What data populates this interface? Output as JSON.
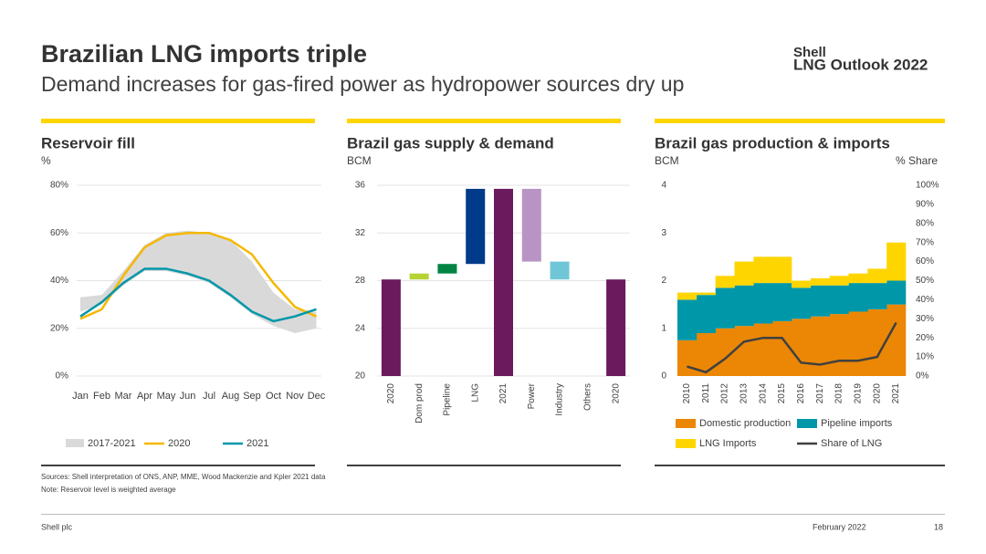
{
  "header": {
    "title": "Brazilian LNG imports triple",
    "subtitle": "Demand increases for gas-fired power as hydropower sources dry up",
    "brand": "Shell",
    "report": "LNG Outlook 2022"
  },
  "chart_data": [
    {
      "type": "line",
      "title": "Reservoir fill",
      "y_label": "%",
      "categories": [
        "Jan",
        "Feb",
        "Mar",
        "Apr",
        "May",
        "Jun",
        "Jul",
        "Aug",
        "Sep",
        "Oct",
        "Nov",
        "Dec"
      ],
      "series": [
        {
          "name": "2017-2021",
          "color": "#d9d9d9",
          "low": [
            27,
            30,
            38,
            44,
            44,
            42,
            39,
            33,
            26,
            21,
            18,
            20
          ],
          "high": [
            33,
            34,
            44,
            55,
            60,
            61,
            60,
            57,
            48,
            35,
            28,
            27
          ]
        },
        {
          "name": "2020",
          "color": "#f5b800",
          "values": [
            24,
            28,
            42,
            54,
            59,
            60,
            60,
            57,
            51,
            39,
            29,
            25
          ]
        },
        {
          "name": "2021",
          "color": "#0097a9",
          "values": [
            25,
            31,
            39,
            45,
            45,
            43,
            40,
            34,
            27,
            23,
            25,
            28
          ]
        }
      ],
      "ylim": [
        0,
        80
      ],
      "yticks": [
        {
          "value": 0,
          "label": "0%"
        },
        {
          "value": 20,
          "label": "20%"
        },
        {
          "value": 40,
          "label": "40%"
        },
        {
          "value": 60,
          "label": "60%"
        },
        {
          "value": 80,
          "label": "80%"
        }
      ],
      "grid": true
    },
    {
      "type": "waterfall",
      "title": "Brazil gas supply & demand",
      "y_label": "BCM",
      "categories": [
        "2020",
        "Dom prod",
        "Pipeline",
        "LNG",
        "2021",
        "Power",
        "Industry",
        "Others",
        "2020"
      ],
      "values": [
        28.1,
        0.5,
        0.8,
        6.3,
        35.7,
        -6.1,
        -1.5,
        0,
        28.1
      ],
      "is_total": [
        true,
        false,
        false,
        false,
        true,
        false,
        false,
        false,
        true
      ],
      "colors": [
        "#6b1a5e",
        "#b5d334",
        "#008443",
        "#003b8a",
        "#6b1a5e",
        "#b894c4",
        "#6fc6d6",
        "#9aa0a6",
        "#6b1a5e"
      ],
      "ylim": [
        20,
        36
      ],
      "yticks": [
        20,
        24,
        28,
        32,
        36
      ],
      "grid": true
    },
    {
      "type": "area",
      "title": "Brazil gas production & imports",
      "y_label": "BCM",
      "y2_label": "% Share",
      "x": [
        2010,
        2011,
        2012,
        2013,
        2014,
        2015,
        2016,
        2017,
        2018,
        2019,
        2020,
        2021
      ],
      "series": [
        {
          "name": "Domestic production",
          "color": "#eb8705",
          "values": [
            0.75,
            0.9,
            1.0,
            1.05,
            1.1,
            1.15,
            1.2,
            1.25,
            1.3,
            1.35,
            1.4,
            1.5
          ]
        },
        {
          "name": "Pipeline imports",
          "color": "#0097a9",
          "values": [
            0.85,
            0.8,
            0.85,
            0.85,
            0.85,
            0.8,
            0.65,
            0.65,
            0.6,
            0.6,
            0.55,
            0.5
          ]
        },
        {
          "name": "LNG Imports",
          "color": "#ffd500",
          "values": [
            0.15,
            0.05,
            0.25,
            0.5,
            0.55,
            0.55,
            0.15,
            0.15,
            0.2,
            0.2,
            0.3,
            0.8
          ]
        },
        {
          "name": "Share of LNG",
          "color": "#404040",
          "type": "line",
          "axis": "y2",
          "values": [
            5,
            2,
            9,
            18,
            20,
            20,
            7,
            6,
            8,
            8,
            10,
            28
          ]
        }
      ],
      "xlim": [
        2009.5,
        2021.5
      ],
      "xticks": [
        2010,
        2011,
        2012,
        2013,
        2014,
        2015,
        2016,
        2017,
        2018,
        2019,
        2020,
        2021
      ],
      "ylim": [
        0,
        4
      ],
      "yticks": [
        0,
        1,
        2,
        3,
        4
      ],
      "y2lim": [
        0,
        100
      ],
      "y2ticks": [
        {
          "value": 0,
          "label": "0%"
        },
        {
          "value": 10,
          "label": "10%"
        },
        {
          "value": 20,
          "label": "20%"
        },
        {
          "value": 30,
          "label": "30%"
        },
        {
          "value": 40,
          "label": "40%"
        },
        {
          "value": 50,
          "label": "50%"
        },
        {
          "value": 60,
          "label": "60%"
        },
        {
          "value": 70,
          "label": "70%"
        },
        {
          "value": 80,
          "label": "80%"
        },
        {
          "value": 90,
          "label": "90%"
        },
        {
          "value": 100,
          "label": "100%"
        }
      ],
      "grid": false
    }
  ],
  "sources": "Sources: Shell interpretation of ONS, ANP, MME, Wood Mackenzie and Kpler 2021 data",
  "note": "Note: Reservoir level is weighted average",
  "footer": {
    "left": "Shell plc",
    "date": "February 2022",
    "page": "18"
  }
}
